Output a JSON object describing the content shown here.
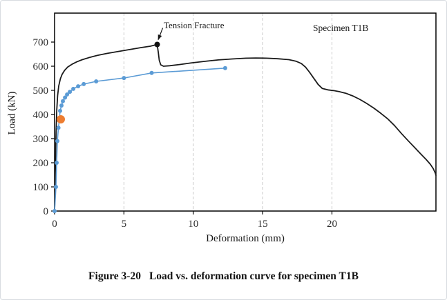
{
  "caption": {
    "figure_label": "Figure 3-20",
    "title": "Load vs. deformation curve for specimen T1B"
  },
  "chart_data": {
    "type": "line",
    "title": "",
    "xlabel": "Deformation (mm)",
    "ylabel": "Load (kN)",
    "xlim": [
      0,
      27.5
    ],
    "ylim": [
      0,
      820
    ],
    "x_ticks": [
      0,
      5,
      10,
      15,
      20
    ],
    "y_ticks": [
      0,
      100,
      200,
      300,
      400,
      500,
      600,
      700
    ],
    "grid": "vertical-dashed",
    "legend": "none",
    "style": {
      "grid_color": "#c9c9c9",
      "frame_color": "#000000",
      "text_color": "#2b2b2b"
    },
    "annotations": {
      "tension_fracture": {
        "label": "Tension Fracture",
        "target_x": 7.4,
        "target_y": 690
      },
      "specimen": {
        "label": "Specimen T1B"
      }
    },
    "series": [
      {
        "id": "black-curve",
        "color": "#1a1a1a",
        "width": 1.8,
        "marker_radius": 0,
        "points": [
          [
            0,
            0
          ],
          [
            0.03,
            90
          ],
          [
            0.07,
            220
          ],
          [
            0.11,
            330
          ],
          [
            0.16,
            420
          ],
          [
            0.22,
            478
          ],
          [
            0.3,
            518
          ],
          [
            0.42,
            548
          ],
          [
            0.55,
            567
          ],
          [
            0.72,
            583
          ],
          [
            0.95,
            597
          ],
          [
            1.25,
            608
          ],
          [
            1.6,
            618
          ],
          [
            2.0,
            627
          ],
          [
            2.5,
            636
          ],
          [
            3.1,
            645
          ],
          [
            3.8,
            653
          ],
          [
            4.6,
            661
          ],
          [
            5.4,
            669
          ],
          [
            6.2,
            677
          ],
          [
            6.9,
            683
          ],
          [
            7.4,
            690
          ],
          [
            7.48,
            658
          ],
          [
            7.55,
            625
          ],
          [
            7.65,
            606
          ],
          [
            7.85,
            600
          ],
          [
            8.3,
            602
          ],
          [
            9.0,
            607
          ],
          [
            9.8,
            613
          ],
          [
            10.8,
            620
          ],
          [
            11.8,
            626
          ],
          [
            12.8,
            630
          ],
          [
            13.8,
            633
          ],
          [
            14.5,
            634
          ],
          [
            15.3,
            633
          ],
          [
            16.1,
            631
          ],
          [
            16.9,
            627
          ],
          [
            17.4,
            621
          ],
          [
            17.8,
            611
          ],
          [
            18.1,
            596
          ],
          [
            18.4,
            574
          ],
          [
            18.7,
            549
          ],
          [
            19.0,
            525
          ],
          [
            19.3,
            508
          ],
          [
            19.7,
            502
          ],
          [
            20.1,
            499
          ],
          [
            20.5,
            495
          ],
          [
            21.0,
            488
          ],
          [
            21.5,
            477
          ],
          [
            22.0,
            463
          ],
          [
            22.5,
            446
          ],
          [
            23.0,
            427
          ],
          [
            23.5,
            406
          ],
          [
            24.0,
            383
          ],
          [
            24.5,
            355
          ],
          [
            25.0,
            322
          ],
          [
            25.5,
            291
          ],
          [
            26.0,
            261
          ],
          [
            26.4,
            237
          ],
          [
            26.8,
            213
          ],
          [
            27.1,
            193
          ],
          [
            27.3,
            176
          ],
          [
            27.45,
            158
          ],
          [
            27.5,
            148
          ]
        ]
      },
      {
        "id": "blue-curve",
        "color": "#5B9BD5",
        "width": 1.6,
        "marker_radius": 3,
        "points": [
          [
            0,
            0
          ],
          [
            0.1,
            100
          ],
          [
            0.15,
            200
          ],
          [
            0.2,
            290
          ],
          [
            0.28,
            345
          ],
          [
            0.35,
            382
          ],
          [
            0.4,
            415
          ],
          [
            0.5,
            437
          ],
          [
            0.6,
            455
          ],
          [
            0.75,
            470
          ],
          [
            0.9,
            483
          ],
          [
            1.1,
            494
          ],
          [
            1.35,
            506
          ],
          [
            1.7,
            517
          ],
          [
            2.1,
            526
          ],
          [
            3.0,
            537
          ],
          [
            5.0,
            551
          ],
          [
            7.0,
            572
          ],
          [
            12.3,
            592
          ]
        ]
      },
      {
        "id": "orange-point",
        "color": "#ED7D31",
        "width": 0,
        "marker_radius": 6,
        "points": [
          [
            0.45,
            380
          ]
        ]
      }
    ]
  }
}
